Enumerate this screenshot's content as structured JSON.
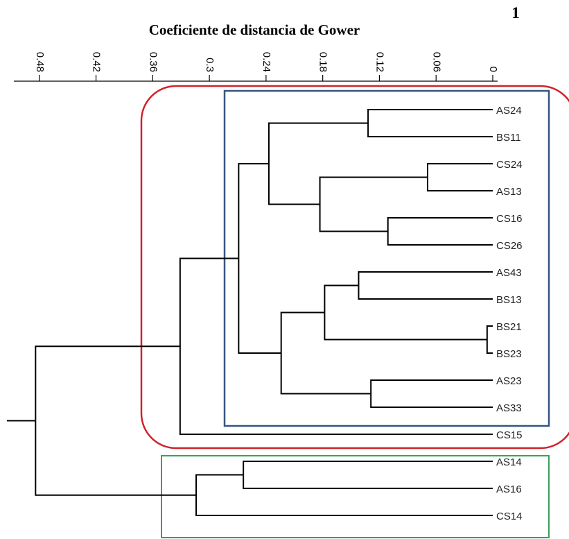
{
  "title": "Coeficiente de distancia de Gower",
  "panel_number": "1",
  "axis": {
    "ticks": [
      {
        "value": 0.48,
        "label": "0.48"
      },
      {
        "value": 0.42,
        "label": "0.42"
      },
      {
        "value": 0.36,
        "label": "0.36"
      },
      {
        "value": 0.3,
        "label": "0.3"
      },
      {
        "value": 0.24,
        "label": "0.24"
      },
      {
        "value": 0.18,
        "label": "0.18"
      },
      {
        "value": 0.12,
        "label": "0.12"
      },
      {
        "value": 0.06,
        "label": "0.06"
      },
      {
        "value": 0.0,
        "label": "0"
      }
    ]
  },
  "leaves": [
    "AS24",
    "BS11",
    "CS24",
    "AS13",
    "CS16",
    "CS26",
    "AS43",
    "BS13",
    "BS21",
    "BS23",
    "AS23",
    "AS33",
    "CS15",
    "AS14",
    "AS16",
    "CS14"
  ],
  "merges": [
    {
      "a": "L0",
      "b": "L1",
      "height": 0.132
    },
    {
      "a": "L2",
      "b": "L3",
      "height": 0.069
    },
    {
      "a": "L4",
      "b": "L5",
      "height": 0.111
    },
    {
      "a": "M1",
      "b": "M2",
      "height": 0.183
    },
    {
      "a": "M0",
      "b": "M3",
      "height": 0.237
    },
    {
      "a": "L6",
      "b": "L7",
      "height": 0.142
    },
    {
      "a": "L8",
      "b": "L9",
      "height": 0.006
    },
    {
      "a": "M5",
      "b": "M6",
      "height": 0.178
    },
    {
      "a": "L10",
      "b": "L11",
      "height": 0.129
    },
    {
      "a": "M7",
      "b": "M8",
      "height": 0.224
    },
    {
      "a": "M4",
      "b": "M9",
      "height": 0.269
    },
    {
      "a": "M10",
      "b": "L12",
      "height": 0.331
    },
    {
      "a": "L13",
      "b": "L14",
      "height": 0.264
    },
    {
      "a": "M12",
      "b": "L15",
      "height": 0.314
    },
    {
      "a": "M11",
      "b": "M13",
      "height": 0.484
    }
  ],
  "groups": [
    {
      "name": "red-group",
      "color": "#d0212a",
      "from": "AS24",
      "to": "CS15"
    },
    {
      "name": "blue-group",
      "color": "#35557f",
      "from": "AS24",
      "to": "AS33"
    },
    {
      "name": "green-group",
      "color": "#3aa05a",
      "from": "AS14",
      "to": "CS14"
    }
  ]
}
